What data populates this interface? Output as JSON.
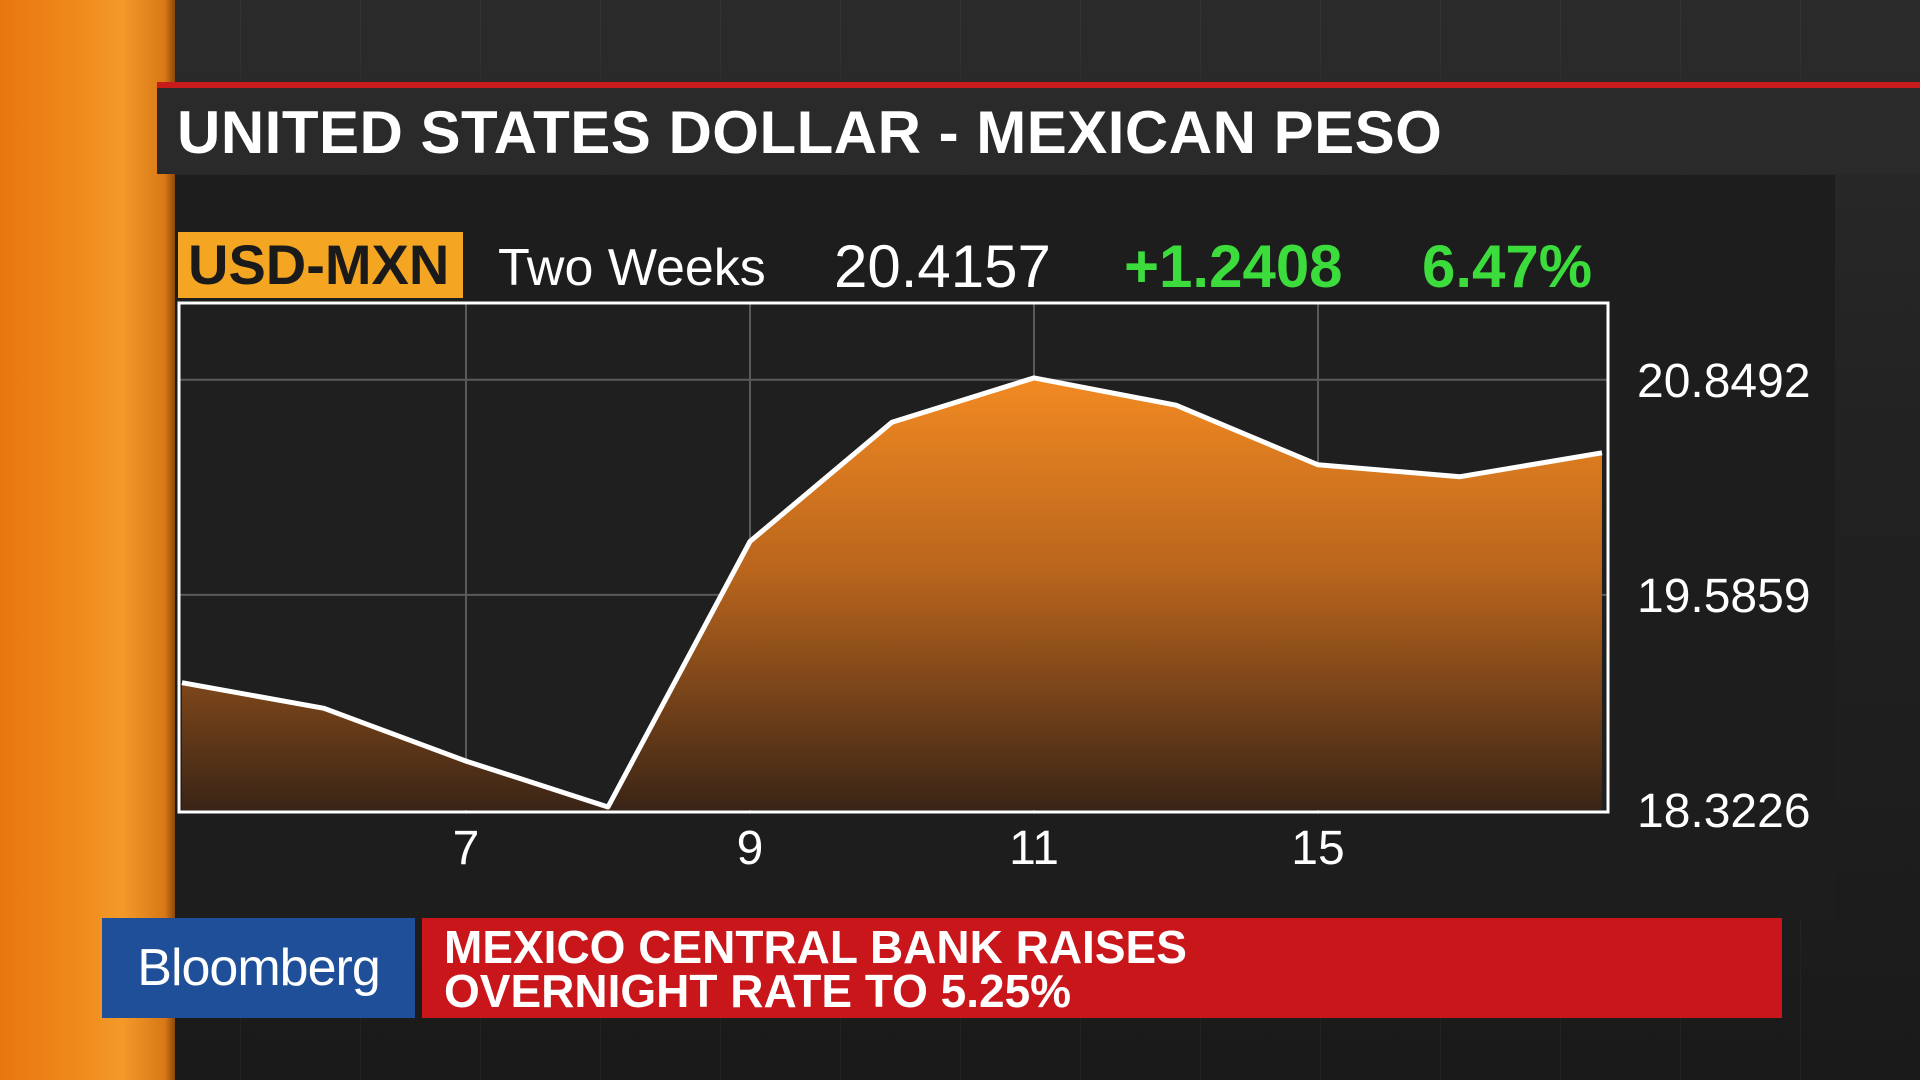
{
  "title": "UNITED STATES DOLLAR - MEXICAN PESO",
  "ticker": "USD-MXN",
  "period": "Two Weeks",
  "last": "20.4157",
  "change": "+1.2408",
  "change_pct": "6.47%",
  "colors": {
    "accent_orange": "#f4a623",
    "positive_green": "#3ddc3d",
    "headline_red": "#c8161b",
    "brand_blue": "#1f4f98",
    "title_rule_red": "#c81c1c"
  },
  "lower_third": {
    "brand": "Bloomberg",
    "headline_line1": "MEXICO CENTRAL BANK RAISES",
    "headline_line2": "OVERNIGHT RATE TO 5.25%"
  },
  "chart_data": {
    "type": "area",
    "title": "UNITED STATES DOLLAR - MEXICAN PESO",
    "xlabel": "",
    "ylabel": "",
    "x": [
      0,
      1,
      2,
      3,
      4,
      5,
      6,
      7,
      8,
      9,
      10
    ],
    "values": [
      19.07,
      18.92,
      18.61,
      18.34,
      19.9,
      20.6,
      20.86,
      20.7,
      20.35,
      20.28,
      20.42
    ],
    "x_ticks": [
      {
        "x": 2,
        "label": "7"
      },
      {
        "x": 4,
        "label": "9"
      },
      {
        "x": 6,
        "label": "11"
      },
      {
        "x": 8,
        "label": "15"
      }
    ],
    "y_ticks": [
      "20.8492",
      "19.5859",
      "18.3226"
    ],
    "ylim": [
      18.3226,
      21.3
    ],
    "grid": true,
    "y_axis_side": "right"
  }
}
